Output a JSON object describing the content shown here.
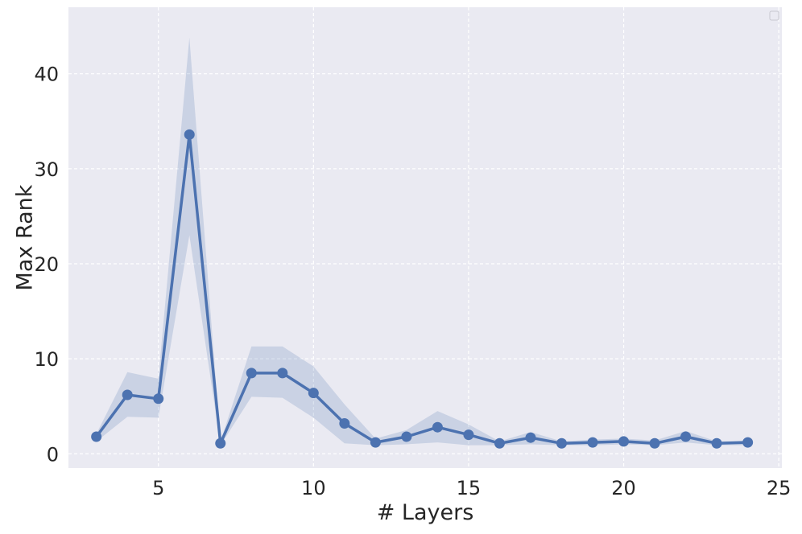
{
  "chart_data": {
    "type": "line",
    "title": "",
    "xlabel": "# Layers",
    "ylabel": "Max Rank",
    "xlim": [
      2.1,
      25.1
    ],
    "ylim": [
      -1.5,
      47.0
    ],
    "xticks": [
      5,
      10,
      15,
      20,
      25
    ],
    "yticks": [
      0,
      10,
      20,
      30,
      40
    ],
    "grid": true,
    "legend": "top-right (empty)",
    "colors": {
      "background": "#eaeaf2",
      "grid": "#ffffff",
      "line": "#4c72b0",
      "band": "#4c72b0",
      "text": "#262626"
    },
    "series": [
      {
        "x": [
          3,
          4,
          5,
          6,
          7,
          8,
          9,
          10,
          11,
          12,
          13,
          14,
          15,
          16,
          17,
          18,
          19,
          20,
          21,
          22,
          23,
          24
        ],
        "values": [
          1.8,
          6.2,
          5.8,
          33.6,
          1.1,
          8.5,
          8.5,
          6.4,
          3.2,
          1.2,
          1.8,
          2.8,
          2.0,
          1.1,
          1.7,
          1.1,
          1.2,
          1.3,
          1.1,
          1.8,
          1.1,
          1.2
        ],
        "lower": [
          1.3,
          3.9,
          3.8,
          23.0,
          0.9,
          6.0,
          5.9,
          3.8,
          1.1,
          0.9,
          1.0,
          1.2,
          0.9,
          0.9,
          1.0,
          0.9,
          0.9,
          1.0,
          0.9,
          1.2,
          0.9,
          0.9
        ],
        "upper": [
          2.1,
          8.6,
          7.9,
          43.8,
          1.3,
          11.3,
          11.3,
          9.2,
          5.2,
          1.6,
          2.5,
          4.5,
          3.1,
          1.3,
          2.3,
          1.3,
          1.5,
          1.6,
          1.4,
          2.4,
          1.3,
          1.4
        ]
      }
    ]
  }
}
